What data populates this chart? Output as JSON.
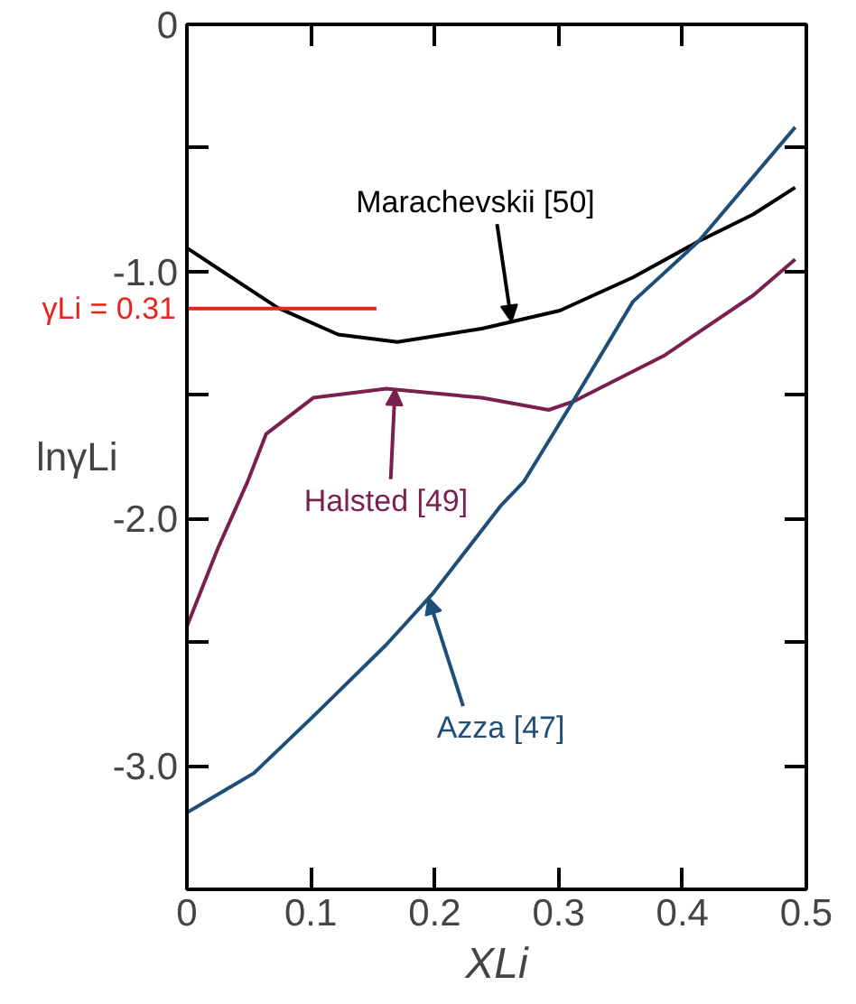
{
  "chart_data": {
    "type": "line",
    "xlabel": "XLi",
    "ylabel": "lnγLi",
    "xlim": [
      0,
      0.5
    ],
    "ylim": [
      -3.5,
      0
    ],
    "xticks": [
      0,
      0.1,
      0.2,
      0.3,
      0.4,
      0.5
    ],
    "yticks": [
      0,
      {
        "value": -0.5,
        "label": null
      },
      {
        "value": -1,
        "label": "-1.0"
      },
      {
        "value": -1.5,
        "label": null
      },
      {
        "value": -2,
        "label": "-2.0"
      },
      {
        "value": -2.5,
        "label": null
      },
      {
        "value": -3,
        "label": "-3.0"
      }
    ],
    "grid": false,
    "marker": "none",
    "line_style": "solid",
    "series": [
      {
        "color": "#000000",
        "x": [
          0,
          0.073,
          0.122,
          0.17,
          0.238,
          0.301,
          0.36,
          0.413,
          0.457,
          0.491
        ],
        "values": [
          -0.905,
          -1.146,
          -1.255,
          -1.285,
          -1.231,
          -1.158,
          -1.024,
          -0.878,
          -0.769,
          -0.66
        ]
      },
      {
        "color": "#7a1f4f",
        "x": [
          0,
          0.025,
          0.049,
          0.064,
          0.102,
          0.161,
          0.238,
          0.292,
          0.312,
          0.385,
          0.457,
          0.491
        ],
        "values": [
          -2.436,
          -2.12,
          -1.85,
          -1.657,
          -1.511,
          -1.474,
          -1.511,
          -1.56,
          -1.526,
          -1.341,
          -1.097,
          -0.951
        ]
      },
      {
        "color": "#1f4e79",
        "x": [
          0,
          0.054,
          0.102,
          0.161,
          0.199,
          0.253,
          0.272,
          0.312,
          0.36,
          0.413,
          0.491
        ],
        "values": [
          -3.19,
          -3.03,
          -2.8,
          -2.51,
          -2.3,
          -1.95,
          -1.85,
          -1.523,
          -1.122,
          -0.878,
          -0.416
        ]
      },
      {
        "name": "γLi = 0.31",
        "color": "#e8231f",
        "x": [
          0,
          0.153
        ],
        "values": [
          -1.15,
          -1.15
        ]
      }
    ],
    "annotations": [
      {
        "text": "Marachevskii [50]",
        "x": 0.262,
        "y": -1.203
      },
      {
        "text": "Halsted [49]",
        "x": 0.168,
        "y": -1.475
      },
      {
        "text": "Azza [47]",
        "x": 0.195,
        "y": -2.32
      }
    ]
  }
}
